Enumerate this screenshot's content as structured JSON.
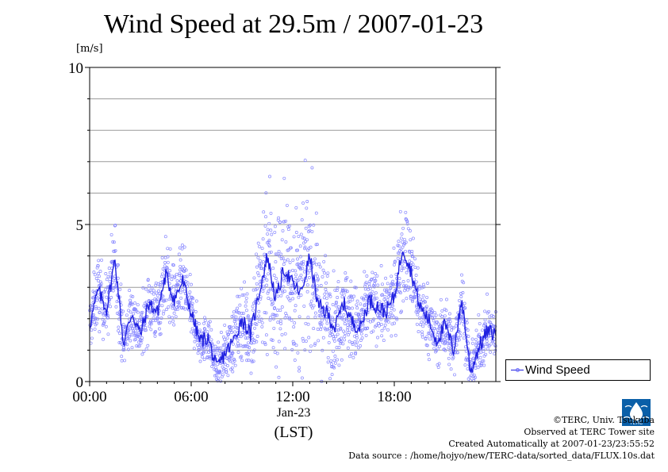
{
  "title": "Wind Speed at 29.5m / 2007-01-23",
  "y_unit_label": "[m/s]",
  "legend_label": "Wind Speed",
  "x_date_label": "Jan-23",
  "x_tz_label": "(LST)",
  "footer": {
    "credit": "©TERC, Univ. Tsukuba",
    "observed": "Observed at TERC Tower site",
    "created": "Created Automatically at 2007-01-23/23:55:52",
    "source": "Data source : /home/hojyo/new/TERC-data/sorted_data/FLUX.10s.dat"
  },
  "logo_text": "TERC",
  "colors": {
    "line": "#2020e0",
    "points": "#8888ff",
    "grid": "#9a9a9a"
  },
  "chart_data": {
    "type": "line",
    "title": "Wind Speed at 29.5m / 2007-01-23",
    "ylabel": "[m/s]",
    "xlabel": "(LST)",
    "xlim": [
      0,
      24
    ],
    "ylim": [
      0,
      10
    ],
    "x_ticks": [
      0,
      6,
      12,
      18
    ],
    "x_tick_labels": [
      "00:00",
      "06:00",
      "12:00",
      "18:00"
    ],
    "y_ticks": [
      0,
      5,
      10
    ],
    "y_tick_labels": [
      "0",
      "5",
      "10"
    ],
    "grid": "horizontal",
    "legend": "right",
    "series": [
      {
        "name": "Wind Speed",
        "x": [
          0.0,
          0.5,
          1.0,
          1.5,
          2.0,
          2.5,
          3.0,
          3.5,
          4.0,
          4.5,
          5.0,
          5.5,
          6.0,
          6.5,
          7.0,
          7.5,
          8.0,
          8.5,
          9.0,
          9.5,
          10.0,
          10.5,
          11.0,
          11.5,
          12.0,
          12.5,
          13.0,
          13.5,
          14.0,
          14.5,
          15.0,
          15.5,
          16.0,
          16.5,
          17.0,
          17.5,
          18.0,
          18.5,
          19.0,
          19.5,
          20.0,
          20.5,
          21.0,
          21.5,
          22.0,
          22.5,
          23.0,
          23.5,
          24.0
        ],
        "values": [
          1.8,
          2.9,
          2.3,
          3.9,
          1.2,
          2.2,
          1.5,
          2.5,
          2.2,
          3.4,
          2.6,
          3.2,
          2.2,
          1.3,
          1.4,
          0.4,
          0.9,
          1.3,
          2.0,
          1.5,
          2.8,
          4.0,
          2.6,
          3.6,
          3.1,
          2.8,
          4.0,
          2.4,
          2.2,
          1.7,
          2.5,
          1.9,
          1.7,
          2.6,
          2.4,
          2.2,
          2.7,
          4.3,
          3.5,
          2.4,
          2.0,
          1.3,
          1.8,
          1.0,
          2.6,
          0.3,
          1.1,
          1.6,
          1.5
        ],
        "scatter_spread": [
          0.6,
          0.8,
          0.7,
          1.0,
          0.6,
          0.7,
          0.6,
          0.7,
          0.7,
          0.9,
          0.7,
          0.8,
          0.6,
          0.5,
          0.5,
          0.4,
          0.6,
          0.7,
          0.8,
          0.9,
          1.6,
          2.2,
          2.0,
          1.8,
          1.7,
          1.8,
          1.8,
          1.4,
          1.2,
          1.0,
          1.0,
          0.9,
          0.8,
          0.8,
          0.7,
          0.7,
          0.8,
          1.2,
          1.0,
          0.8,
          0.7,
          0.6,
          0.7,
          0.6,
          0.8,
          0.4,
          0.6,
          0.6,
          0.5
        ]
      }
    ]
  }
}
